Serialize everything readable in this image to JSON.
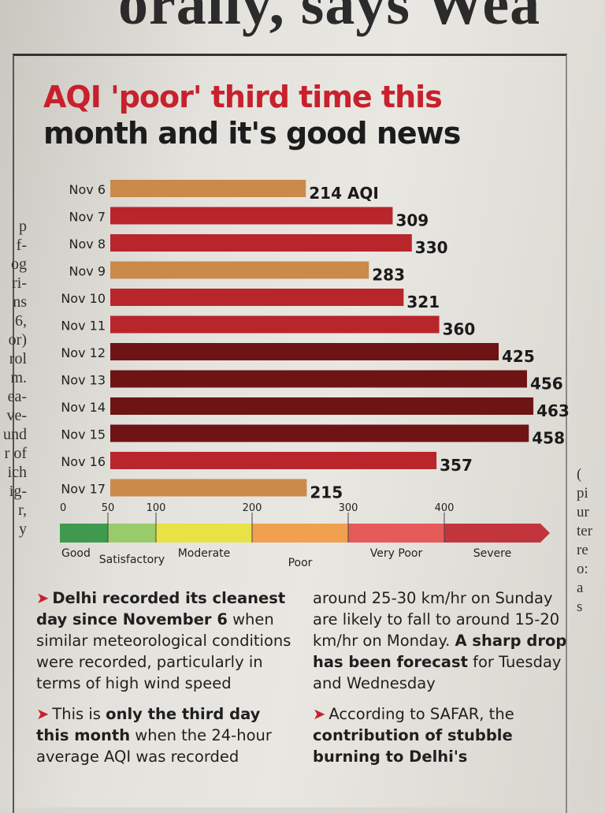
{
  "header": {
    "title_line1": "AQI 'poor' third time this",
    "title_line2": "month and it's good news"
  },
  "chart_data": {
    "type": "bar",
    "orientation": "horizontal",
    "categories": [
      "Nov 6",
      "Nov 7",
      "Nov 8",
      "Nov 9",
      "Nov 10",
      "Nov 11",
      "Nov 12",
      "Nov 13",
      "Nov 14",
      "Nov 15",
      "Nov 16",
      "Nov 17"
    ],
    "values": [
      214,
      309,
      330,
      283,
      321,
      360,
      425,
      456,
      463,
      458,
      357,
      215
    ],
    "value_labels": [
      "214 AQI",
      "309",
      "330",
      "283",
      "321",
      "360",
      "425",
      "456",
      "463",
      "458",
      "357",
      "215"
    ],
    "bar_colors": [
      "#c98a4a",
      "#b8262c",
      "#b8262c",
      "#c98a4a",
      "#b8262c",
      "#b8262c",
      "#6e1414",
      "#6e1414",
      "#6e1414",
      "#6e1414",
      "#b8262c",
      "#c98a4a"
    ],
    "xlim": [
      0,
      500
    ],
    "scale": {
      "ticks": [
        0,
        50,
        100,
        200,
        300,
        400
      ],
      "bands": [
        {
          "from": 0,
          "to": 50,
          "label": "Good",
          "color": "#3f9a4f"
        },
        {
          "from": 50,
          "to": 100,
          "label": "Satisfactory",
          "color": "#9acb6a"
        },
        {
          "from": 100,
          "to": 200,
          "label": "Moderate",
          "color": "#e8e246"
        },
        {
          "from": 200,
          "to": 300,
          "label": "Poor",
          "color": "#f1a04f"
        },
        {
          "from": 300,
          "to": 400,
          "label": "Very Poor",
          "color": "#e65a5a"
        },
        {
          "from": 400,
          "to": 500,
          "label": "Severe",
          "color": "#c2353d"
        }
      ]
    }
  },
  "article": {
    "left": {
      "p1_bold": "Delhi recorded its cleanest day since November 6",
      "p1_rest": " when similar meteorological conditions were recorded, particularly in terms of high wind speed",
      "p2_pre": "This is ",
      "p2_bold": "only the third day this month",
      "p2_rest": " when the 24-hour average AQI was recorded"
    },
    "right": {
      "p1_rest": "around 25-30 km/hr on Sunday are likely to fall to around 15-20 km/hr on Monday. ",
      "p1_bold": "A sharp drop has been forecast",
      "p1_end": " for Tuesday and Wednesday",
      "p2_pre": "According to SAFAR, the ",
      "p2_bold": "contribution of stubble burning to Delhi's"
    }
  },
  "overhang": {
    "headline_fragment": "orally, says Wea",
    "left_column_fragments": [
      "p",
      "f-",
      "og",
      "ri-",
      "ns",
      "6,",
      "or)",
      "rol",
      "m.",
      "ea-",
      "ve-",
      "und",
      "r of",
      "ich",
      "ig-",
      "r,",
      "y"
    ],
    "right_column_fragments": [
      "(",
      "pi",
      "ur",
      "ter",
      "re",
      "o:",
      "a",
      "s"
    ]
  }
}
